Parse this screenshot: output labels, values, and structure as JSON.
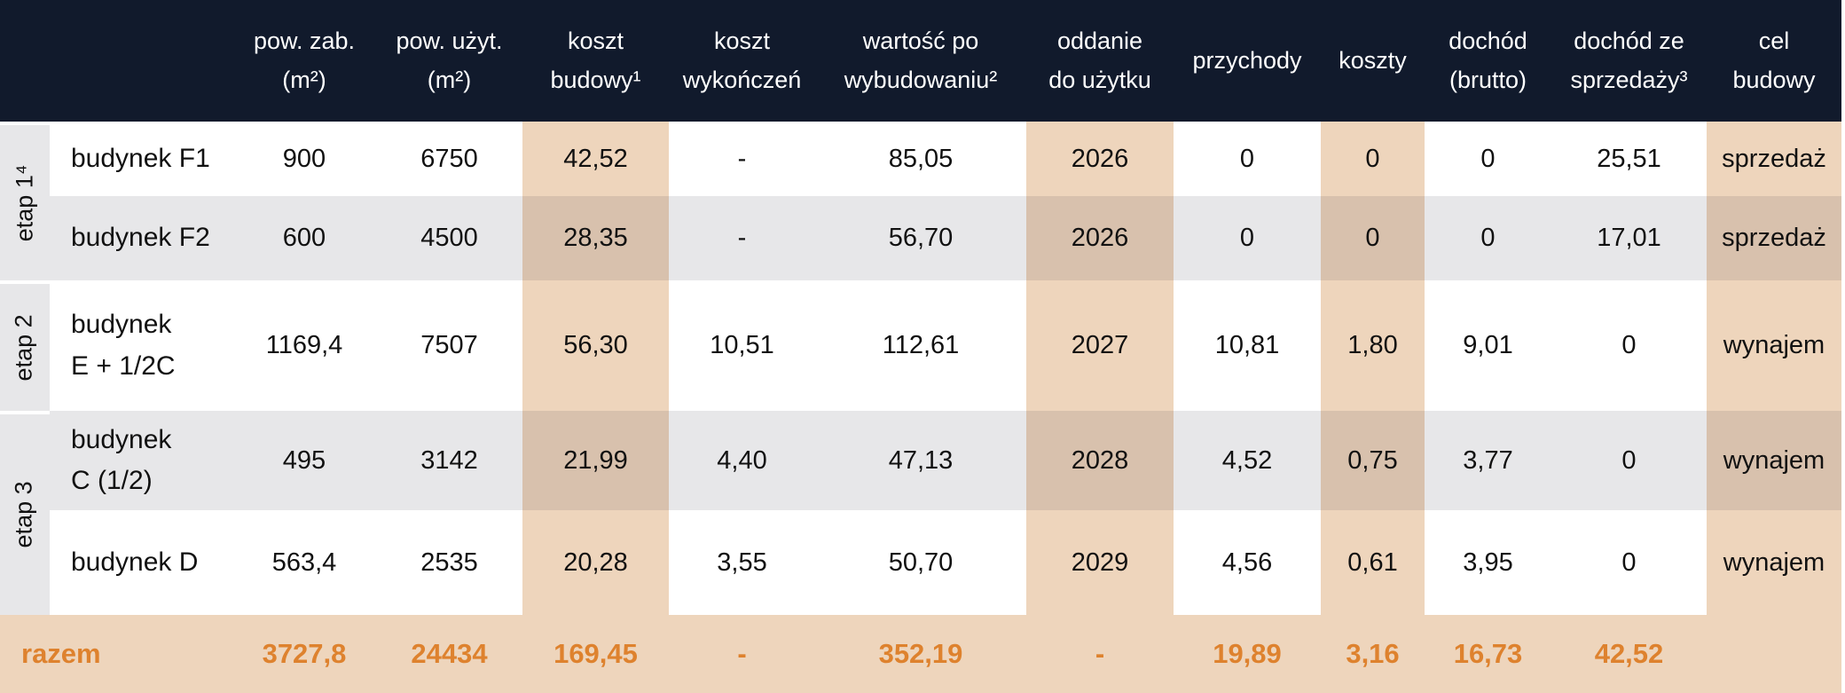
{
  "headers": [
    "",
    "",
    "pow. zab.\n(m²)",
    "pow. użyt.\n(m²)",
    "koszt\nbudowy¹",
    "koszt\nwykończeń",
    "wartość po\nwybudowaniu²",
    "oddanie\ndo użytku",
    "przychody",
    "koszty",
    "dochód\n(brutto)",
    "dochód ze\nsprzedaży³",
    "cel\nbudowy"
  ],
  "stages": [
    "etap 1⁴",
    "etap 2",
    "etap 3"
  ],
  "rows": [
    {
      "name": "budynek F1",
      "values": [
        "900",
        "6750",
        "42,52",
        "-",
        "85,05",
        "2026",
        "0",
        "0",
        "0",
        "25,51",
        "sprzedaż"
      ]
    },
    {
      "name": "budynek F2",
      "values": [
        "600",
        "4500",
        "28,35",
        "-",
        "56,70",
        "2026",
        "0",
        "0",
        "0",
        "17,01",
        "sprzedaż"
      ]
    },
    {
      "name": "budynek\nE + 1/2C",
      "values": [
        "1169,4",
        "7507",
        "56,30",
        "10,51",
        "112,61",
        "2027",
        "10,81",
        "1,80",
        "9,01",
        "0",
        "wynajem"
      ]
    },
    {
      "name": "budynek\nC (1/2)",
      "values": [
        "495",
        "3142",
        "21,99",
        "4,40",
        "47,13",
        "2028",
        "4,52",
        "0,75",
        "3,77",
        "0",
        "wynajem"
      ]
    },
    {
      "name": "budynek D",
      "values": [
        "563,4",
        "2535",
        "20,28",
        "3,55",
        "50,70",
        "2029",
        "4,56",
        "0,61",
        "3,95",
        "0",
        "wynajem"
      ]
    }
  ],
  "total": {
    "label": "razem",
    "values": [
      "3727,8",
      "24434",
      "169,45",
      "-",
      "352,19",
      "-",
      "19,89",
      "3,16",
      "16,73",
      "42,52",
      ""
    ]
  },
  "colors": {
    "header_bg": "#111a2c",
    "highlight": "#eed5bc",
    "highlight_grey": "#d8c1ad",
    "row_grey": "#e7e7e9",
    "total_text": "#de822e"
  }
}
